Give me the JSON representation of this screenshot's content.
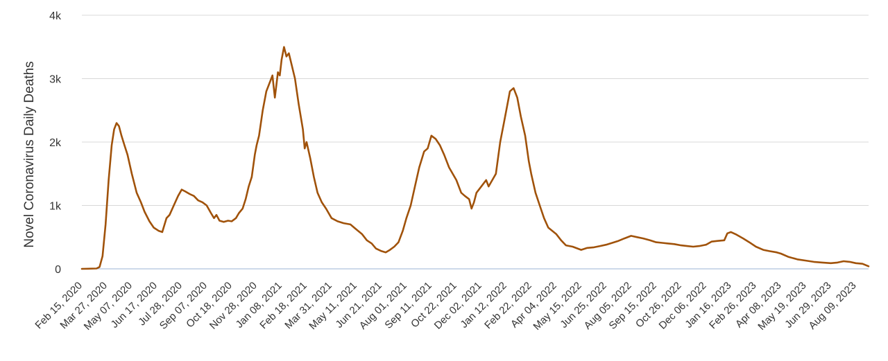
{
  "chart_data": {
    "type": "line",
    "ylabel": "Novel Coronavirus Daily Deaths",
    "ylim": [
      0,
      4000
    ],
    "y_ticks": [
      {
        "value": 0,
        "label": "0"
      },
      {
        "value": 1000,
        "label": "1k"
      },
      {
        "value": 2000,
        "label": "2k"
      },
      {
        "value": 3000,
        "label": "3k"
      },
      {
        "value": 4000,
        "label": "4k"
      }
    ],
    "x_tick_labels": [
      "Feb 15, 2020",
      "Mar 27, 2020",
      "May 07, 2020",
      "Jun 17, 2020",
      "Jul 28, 2020",
      "Sep 07, 2020",
      "Oct 18, 2020",
      "Nov 28, 2020",
      "Jan 08, 2021",
      "Feb 18, 2021",
      "Mar 31, 2021",
      "May 11, 2021",
      "Jun 21, 2021",
      "Aug 01, 2021",
      "Sep 11, 2021",
      "Oct 22, 2021",
      "Dec 02, 2021",
      "Jan 12, 2022",
      "Feb 22, 2022",
      "Apr 04, 2022",
      "May 15, 2022",
      "Jun 25, 2022",
      "Aug 05, 2022",
      "Sep 15, 2022",
      "Oct 26, 2022",
      "Dec 06, 2022",
      "Jan 16, 2023",
      "Feb 26, 2023",
      "Apr 08, 2023",
      "May 19, 2023",
      "Jun 29, 2023",
      "Aug 09, 2023"
    ],
    "x_range": [
      "Feb 15, 2020",
      "Aug 30, 2023"
    ],
    "grid": true,
    "legend": "none",
    "series": [
      {
        "color": "#a0520a",
        "points": [
          [
            "Feb 15, 2020",
            0
          ],
          [
            "Mar 10, 2020",
            5
          ],
          [
            "Mar 15, 2020",
            30
          ],
          [
            "Mar 20, 2020",
            200
          ],
          [
            "Mar 25, 2020",
            700
          ],
          [
            "Mar 30, 2020",
            1400
          ],
          [
            "Apr 04, 2020",
            1950
          ],
          [
            "Apr 08, 2020",
            2200
          ],
          [
            "Apr 12, 2020",
            2300
          ],
          [
            "Apr 16, 2020",
            2250
          ],
          [
            "Apr 20, 2020",
            2100
          ],
          [
            "Apr 25, 2020",
            1950
          ],
          [
            "Apr 30, 2020",
            1800
          ],
          [
            "May 07, 2020",
            1500
          ],
          [
            "May 15, 2020",
            1200
          ],
          [
            "May 22, 2020",
            1050
          ],
          [
            "May 28, 2020",
            900
          ],
          [
            "Jun 05, 2020",
            750
          ],
          [
            "Jun 12, 2020",
            650
          ],
          [
            "Jun 20, 2020",
            600
          ],
          [
            "Jun 26, 2020",
            580
          ],
          [
            "Jul 03, 2020",
            800
          ],
          [
            "Jul 08, 2020",
            850
          ],
          [
            "Jul 15, 2020",
            1000
          ],
          [
            "Jul 22, 2020",
            1150
          ],
          [
            "Jul 28, 2020",
            1250
          ],
          [
            "Aug 03, 2020",
            1220
          ],
          [
            "Aug 10, 2020",
            1180
          ],
          [
            "Aug 17, 2020",
            1150
          ],
          [
            "Aug 24, 2020",
            1080
          ],
          [
            "Aug 31, 2020",
            1050
          ],
          [
            "Sep 07, 2020",
            1000
          ],
          [
            "Sep 14, 2020",
            880
          ],
          [
            "Sep 19, 2020",
            800
          ],
          [
            "Sep 23, 2020",
            850
          ],
          [
            "Sep 28, 2020",
            760
          ],
          [
            "Oct 05, 2020",
            740
          ],
          [
            "Oct 12, 2020",
            760
          ],
          [
            "Oct 18, 2020",
            750
          ],
          [
            "Oct 25, 2020",
            800
          ],
          [
            "Oct 30, 2020",
            880
          ],
          [
            "Nov 05, 2020",
            950
          ],
          [
            "Nov 10, 2020",
            1100
          ],
          [
            "Nov 15, 2020",
            1300
          ],
          [
            "Nov 20, 2020",
            1450
          ],
          [
            "Nov 25, 2020",
            1800
          ],
          [
            "Nov 28, 2020",
            1950
          ],
          [
            "Dec 02, 2020",
            2100
          ],
          [
            "Dec 08, 2020",
            2500
          ],
          [
            "Dec 14, 2020",
            2800
          ],
          [
            "Dec 20, 2020",
            2950
          ],
          [
            "Dec 24, 2020",
            3050
          ],
          [
            "Dec 28, 2020",
            2700
          ],
          [
            "Jan 02, 2021",
            3100
          ],
          [
            "Jan 05, 2021",
            3050
          ],
          [
            "Jan 08, 2021",
            3300
          ],
          [
            "Jan 12, 2021",
            3500
          ],
          [
            "Jan 16, 2021",
            3350
          ],
          [
            "Jan 20, 2021",
            3400
          ],
          [
            "Jan 25, 2021",
            3200
          ],
          [
            "Jan 30, 2021",
            3000
          ],
          [
            "Feb 05, 2021",
            2600
          ],
          [
            "Feb 12, 2021",
            2200
          ],
          [
            "Feb 15, 2021",
            1900
          ],
          [
            "Feb 18, 2021",
            2000
          ],
          [
            "Feb 24, 2021",
            1750
          ],
          [
            "Mar 02, 2021",
            1450
          ],
          [
            "Mar 08, 2021",
            1200
          ],
          [
            "Mar 15, 2021",
            1050
          ],
          [
            "Mar 22, 2021",
            950
          ],
          [
            "Mar 31, 2021",
            800
          ],
          [
            "Apr 10, 2021",
            750
          ],
          [
            "Apr 20, 2021",
            720
          ],
          [
            "May 01, 2021",
            700
          ],
          [
            "May 11, 2021",
            620
          ],
          [
            "May 20, 2021",
            550
          ],
          [
            "May 28, 2021",
            450
          ],
          [
            "Jun 05, 2021",
            400
          ],
          [
            "Jun 12, 2021",
            320
          ],
          [
            "Jun 21, 2021",
            280
          ],
          [
            "Jun 28, 2021",
            260
          ],
          [
            "Jul 05, 2021",
            300
          ],
          [
            "Jul 12, 2021",
            350
          ],
          [
            "Jul 19, 2021",
            420
          ],
          [
            "Jul 26, 2021",
            600
          ],
          [
            "Aug 01, 2021",
            800
          ],
          [
            "Aug 08, 2021",
            1000
          ],
          [
            "Aug 15, 2021",
            1300
          ],
          [
            "Aug 22, 2021",
            1600
          ],
          [
            "Aug 30, 2021",
            1850
          ],
          [
            "Sep 05, 2021",
            1900
          ],
          [
            "Sep 11, 2021",
            2100
          ],
          [
            "Sep 18, 2021",
            2050
          ],
          [
            "Sep 25, 2021",
            1950
          ],
          [
            "Oct 02, 2021",
            1800
          ],
          [
            "Oct 10, 2021",
            1600
          ],
          [
            "Oct 22, 2021",
            1400
          ],
          [
            "Oct 30, 2021",
            1200
          ],
          [
            "Nov 05, 2021",
            1150
          ],
          [
            "Nov 12, 2021",
            1100
          ],
          [
            "Nov 16, 2021",
            950
          ],
          [
            "Nov 20, 2021",
            1050
          ],
          [
            "Nov 24, 2021",
            1200
          ],
          [
            "Dec 02, 2021",
            1300
          ],
          [
            "Dec 10, 2021",
            1400
          ],
          [
            "Dec 14, 2021",
            1300
          ],
          [
            "Dec 20, 2021",
            1400
          ],
          [
            "Dec 26, 2021",
            1500
          ],
          [
            "Jan 02, 2022",
            2000
          ],
          [
            "Jan 08, 2022",
            2300
          ],
          [
            "Jan 12, 2022",
            2500
          ],
          [
            "Jan 18, 2022",
            2800
          ],
          [
            "Jan 24, 2022",
            2850
          ],
          [
            "Jan 30, 2022",
            2700
          ],
          [
            "Feb 05, 2022",
            2400
          ],
          [
            "Feb 12, 2022",
            2100
          ],
          [
            "Feb 18, 2022",
            1700
          ],
          [
            "Feb 22, 2022",
            1500
          ],
          [
            "Mar 01, 2022",
            1200
          ],
          [
            "Mar 08, 2022",
            1000
          ],
          [
            "Mar 15, 2022",
            800
          ],
          [
            "Mar 22, 2022",
            650
          ],
          [
            "Apr 04, 2022",
            550
          ],
          [
            "Apr 12, 2022",
            450
          ],
          [
            "Apr 20, 2022",
            370
          ],
          [
            "May 01, 2022",
            350
          ],
          [
            "May 15, 2022",
            300
          ],
          [
            "May 25, 2022",
            330
          ],
          [
            "Jun 05, 2022",
            340
          ],
          [
            "Jun 15, 2022",
            360
          ],
          [
            "Jun 25, 2022",
            380
          ],
          [
            "Jul 05, 2022",
            410
          ],
          [
            "Jul 15, 2022",
            440
          ],
          [
            "Jul 25, 2022",
            480
          ],
          [
            "Aug 05, 2022",
            520
          ],
          [
            "Aug 15, 2022",
            500
          ],
          [
            "Aug 25, 2022",
            480
          ],
          [
            "Sep 05, 2022",
            450
          ],
          [
            "Sep 15, 2022",
            420
          ],
          [
            "Sep 25, 2022",
            410
          ],
          [
            "Oct 05, 2022",
            400
          ],
          [
            "Oct 15, 2022",
            390
          ],
          [
            "Oct 26, 2022",
            370
          ],
          [
            "Nov 05, 2022",
            360
          ],
          [
            "Nov 15, 2022",
            350
          ],
          [
            "Nov 25, 2022",
            360
          ],
          [
            "Dec 06, 2022",
            380
          ],
          [
            "Dec 15, 2022",
            430
          ],
          [
            "Dec 25, 2022",
            440
          ],
          [
            "Jan 05, 2023",
            450
          ],
          [
            "Jan 10, 2023",
            560
          ],
          [
            "Jan 16, 2023",
            580
          ],
          [
            "Jan 25, 2023",
            540
          ],
          [
            "Feb 05, 2023",
            480
          ],
          [
            "Feb 15, 2023",
            420
          ],
          [
            "Feb 26, 2023",
            350
          ],
          [
            "Mar 10, 2023",
            300
          ],
          [
            "Mar 20, 2023",
            280
          ],
          [
            "Apr 01, 2023",
            260
          ],
          [
            "Apr 08, 2023",
            240
          ],
          [
            "Apr 20, 2023",
            190
          ],
          [
            "May 05, 2023",
            150
          ],
          [
            "May 19, 2023",
            130
          ],
          [
            "Jun 01, 2023",
            110
          ],
          [
            "Jun 15, 2023",
            100
          ],
          [
            "Jun 29, 2023",
            90
          ],
          [
            "Jul 10, 2023",
            100
          ],
          [
            "Jul 20, 2023",
            120
          ],
          [
            "Jul 30, 2023",
            110
          ],
          [
            "Aug 09, 2023",
            90
          ],
          [
            "Aug 20, 2023",
            80
          ],
          [
            "Aug 30, 2023",
            40
          ]
        ]
      }
    ]
  }
}
